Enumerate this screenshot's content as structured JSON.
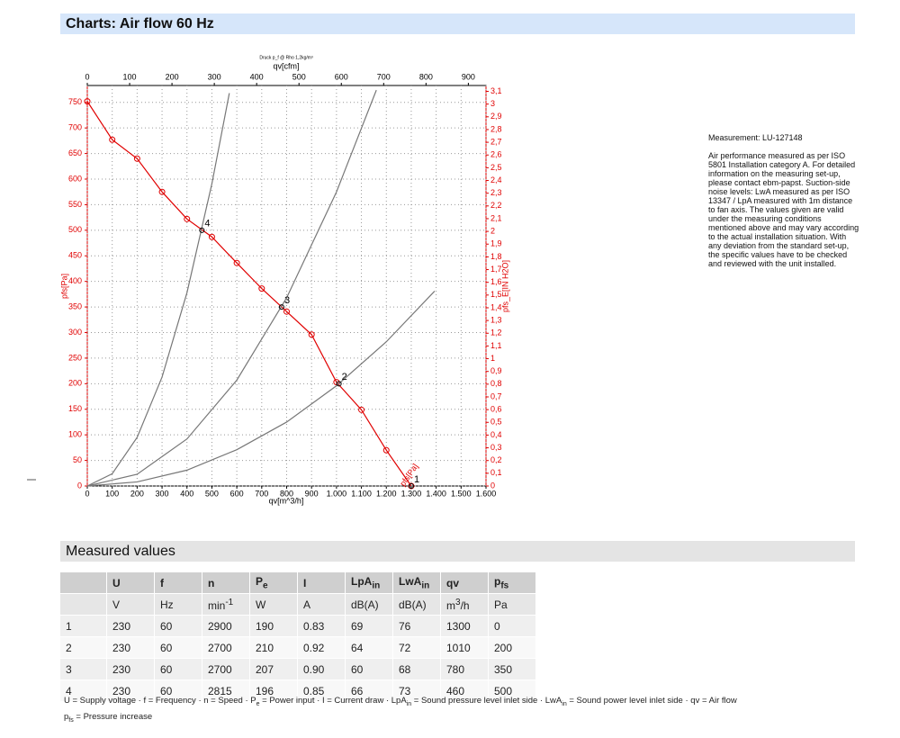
{
  "header": {
    "title": "Charts: Air flow 60 Hz"
  },
  "chart_data": {
    "type": "line",
    "title": "Druck p_f @ Rho 1,2kg/m³",
    "x_label": "qv[m^3/h]",
    "x2_label": "qv[cfm]",
    "y_label": "pfs[Pa]",
    "y2_label": "pfs_E[IN H2O]",
    "xlim": [
      0,
      1600
    ],
    "x2lim": [
      0,
      941.7
    ],
    "ylim": [
      0,
      783
    ],
    "y2lim": [
      0,
      3.146
    ],
    "xticks": [
      0,
      100,
      200,
      300,
      400,
      500,
      600,
      700,
      800,
      900,
      {
        "value": 1000,
        "label": "1.000"
      },
      {
        "value": 1100,
        "label": "1.100"
      },
      {
        "value": 1200,
        "label": "1.200"
      },
      {
        "value": 1300,
        "label": "1.300"
      },
      {
        "value": 1400,
        "label": "1.400"
      },
      {
        "value": 1500,
        "label": "1.500"
      },
      {
        "value": 1600,
        "label": "1.600"
      }
    ],
    "x2ticks": [
      0,
      100,
      200,
      300,
      400,
      500,
      600,
      700,
      800,
      900
    ],
    "yticks": [
      0,
      50,
      100,
      150,
      200,
      250,
      300,
      350,
      400,
      450,
      500,
      550,
      600,
      650,
      700,
      750
    ],
    "y2ticks": [
      0,
      {
        "value": 0.1,
        "label": "0,1"
      },
      {
        "value": 0.2,
        "label": "0,2"
      },
      {
        "value": 0.3,
        "label": "0,3"
      },
      {
        "value": 0.4,
        "label": "0,4"
      },
      {
        "value": 0.5,
        "label": "0,5"
      },
      {
        "value": 0.6,
        "label": "0,6"
      },
      {
        "value": 0.7,
        "label": "0,7"
      },
      {
        "value": 0.8,
        "label": "0,8"
      },
      {
        "value": 0.9,
        "label": "0,9"
      },
      1,
      {
        "value": 1.1,
        "label": "1,1"
      },
      {
        "value": 1.2,
        "label": "1,2"
      },
      {
        "value": 1.3,
        "label": "1,3"
      },
      {
        "value": 1.4,
        "label": "1,4"
      },
      {
        "value": 1.5,
        "label": "1,5"
      },
      {
        "value": 1.6,
        "label": "1,6"
      },
      {
        "value": 1.7,
        "label": "1,7"
      },
      {
        "value": 1.8,
        "label": "1,8"
      },
      {
        "value": 1.9,
        "label": "1,9"
      },
      2,
      {
        "value": 2.1,
        "label": "2,1"
      },
      {
        "value": 2.2,
        "label": "2,2"
      },
      {
        "value": 2.3,
        "label": "2,3"
      },
      {
        "value": 2.4,
        "label": "2,4"
      },
      {
        "value": 2.5,
        "label": "2,5"
      },
      {
        "value": 2.6,
        "label": "2,6"
      },
      {
        "value": 2.7,
        "label": "2,7"
      },
      {
        "value": 2.8,
        "label": "2,8"
      },
      {
        "value": 2.9,
        "label": "2,9"
      },
      3,
      {
        "value": 3.1,
        "label": "3,1"
      }
    ],
    "grid": true,
    "series": [
      {
        "name": "pfs[Pa]",
        "color": "#e00000",
        "markers": true,
        "x": [
          0,
          100,
          200,
          300,
          400,
          500,
          600,
          700,
          800,
          900,
          1000,
          1100,
          1200,
          1300
        ],
        "values": [
          752,
          677,
          640,
          575,
          522,
          487,
          436,
          386,
          341,
          296,
          203,
          149,
          70,
          0
        ]
      },
      {
        "color": "#777777",
        "x": [
          0,
          100,
          200,
          300,
          400,
          500,
          570
        ],
        "values": [
          0,
          24,
          95,
          213,
          378,
          591,
          768
        ]
      },
      {
        "color": "#777777",
        "x": [
          0,
          200,
          400,
          600,
          800,
          1000,
          1160
        ],
        "values": [
          0,
          23,
          92,
          207,
          368,
          575,
          774
        ]
      },
      {
        "color": "#777777",
        "x": [
          0,
          200,
          400,
          600,
          800,
          1000,
          1200,
          1394
        ],
        "values": [
          0,
          8,
          31,
          71,
          125,
          196,
          282,
          381
        ]
      }
    ]
  },
  "notes": {
    "measurement": "Measurement: LU-127148",
    "text": "Air performance measured as per ISO 5801 Installation category A. For detailed information on the measuring set-up, please contact ebm-papst. Suction-side noise levels: LwA measured as per ISO 13347 / LpA measured with 1m distance to fan axis. The values given are valid under the measuring conditions mentioned above and may vary according to the actual installation situation. With any deviation from the standard set-up, the specific values have to be checked and reviewed with the unit installed."
  },
  "section": {
    "title": "Measured values"
  },
  "table": {
    "columns": [
      {
        "name": "U",
        "unit": "V"
      },
      {
        "name": "f",
        "unit": "Hz"
      },
      {
        "name": "n",
        "unit": "min",
        "unit_sup": "-1"
      },
      {
        "name": "P",
        "sub": "e",
        "unit": "W"
      },
      {
        "name": "I",
        "unit": "A"
      },
      {
        "name": "LpA",
        "sub": "in",
        "unit": "dB(A)"
      },
      {
        "name": "LwA",
        "sub": "in",
        "unit": "dB(A)"
      },
      {
        "name": "qv",
        "unit": "m",
        "unit_sup": "3",
        "unit_rest": "/h"
      },
      {
        "name": "p",
        "sub": "fs",
        "unit": "Pa"
      }
    ],
    "rows": [
      [
        "1",
        "230",
        "60",
        "2900",
        "190",
        "0.83",
        "69",
        "76",
        "1300",
        "0"
      ],
      [
        "2",
        "230",
        "60",
        "2700",
        "210",
        "0.92",
        "64",
        "72",
        "1010",
        "200"
      ],
      [
        "3",
        "230",
        "60",
        "2700",
        "207",
        "0.90",
        "60",
        "68",
        "780",
        "350"
      ],
      [
        "4",
        "230",
        "60",
        "2815",
        "196",
        "0.85",
        "66",
        "73",
        "460",
        "500"
      ]
    ]
  },
  "legend": [
    "U = Supply voltage · f = Frequency · n = Speed · P",
    {
      "sub": "e"
    },
    " = Power input · I = Current draw · LpA",
    {
      "sub": "in"
    },
    " = Sound pressure level inlet side · LwA",
    {
      "sub": "in"
    },
    " = Sound power level inlet side · qv = Air flow"
  ],
  "legend2": [
    "p",
    {
      "sub": "fs"
    },
    " = Pressure increase"
  ]
}
